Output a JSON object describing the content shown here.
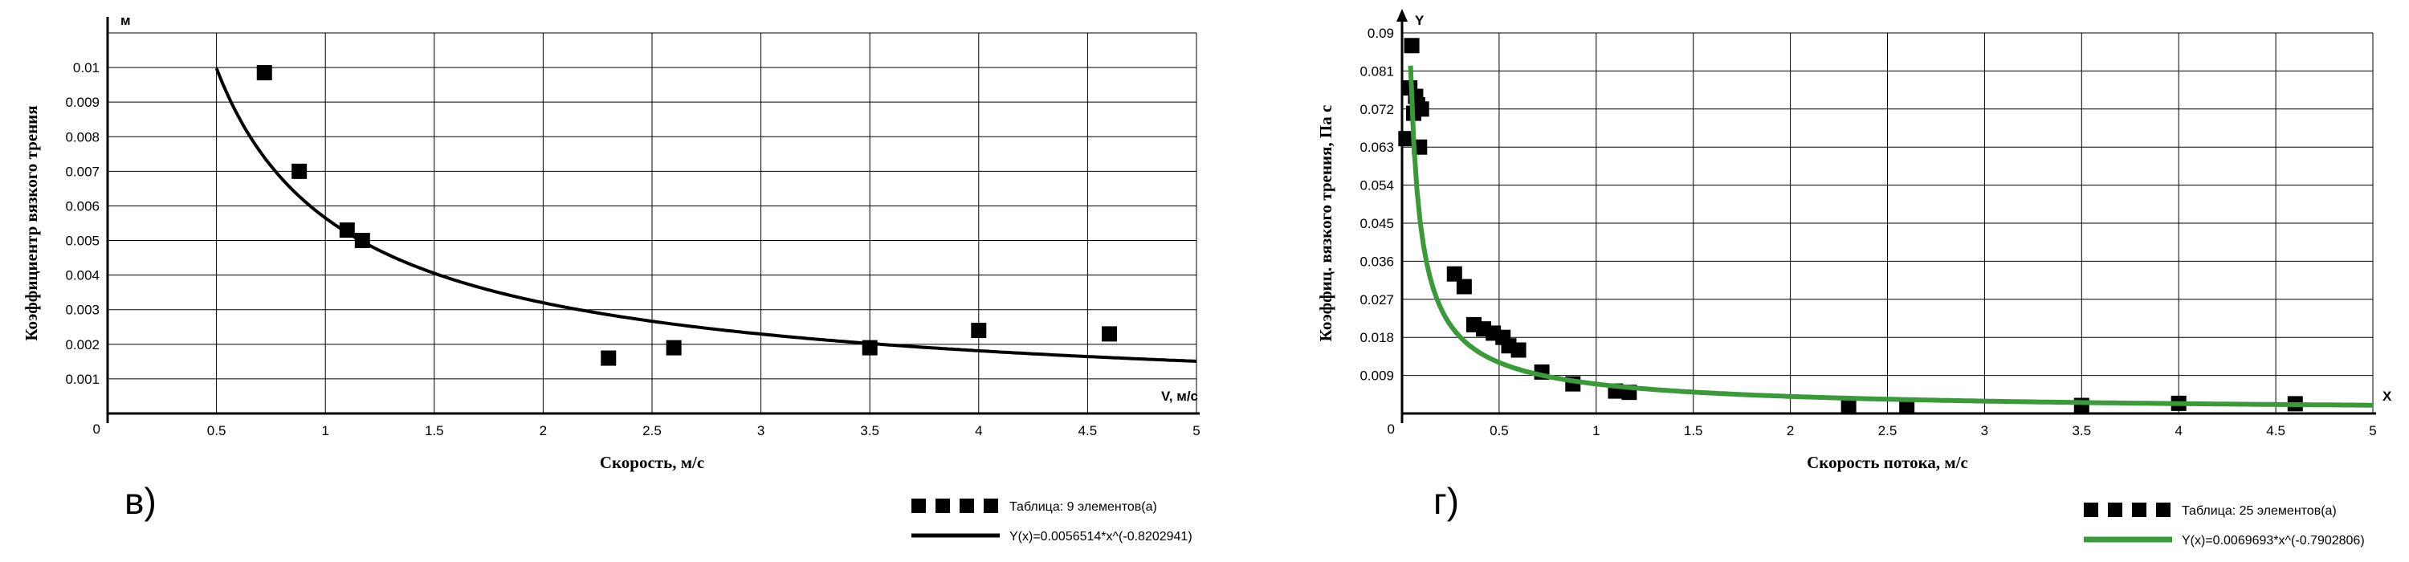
{
  "chart_data": [
    {
      "type": "scatter",
      "panel_label": "в)",
      "ylabel": "Коэффициентр вязкого трения",
      "ylabel_top": "м",
      "xlabel": "Скорость, м/с",
      "xlabel_end": "V, м/с",
      "xlim": [
        0,
        5
      ],
      "ylim": [
        0,
        0.011
      ],
      "x_ticks": [
        "0.5",
        "1",
        "1.5",
        "2",
        "2.5",
        "3",
        "3.5",
        "4",
        "4.5",
        "5"
      ],
      "y_ticks": [
        "0.001",
        "0.002",
        "0.003",
        "0.004",
        "0.005",
        "0.006",
        "0.007",
        "0.008",
        "0.009",
        "0.01"
      ],
      "origin_label": "0",
      "grid": true,
      "legend_position": "bottom-right",
      "series": [
        {
          "name": "Таблица: 9 элементов(а)",
          "kind": "points",
          "color": "#000000",
          "x": [
            0.72,
            0.88,
            1.1,
            1.17,
            2.3,
            2.6,
            3.5,
            4.0,
            4.6
          ],
          "y": [
            0.00985,
            0.007,
            0.0053,
            0.005,
            0.0016,
            0.0019,
            0.0019,
            0.0024,
            0.0023
          ]
        },
        {
          "name": "Y(x)=0.0056514*x^(-0.8202941)",
          "kind": "power_curve",
          "color": "#000000",
          "a": 0.0056514,
          "b": -0.8202941,
          "x_from": 0.5,
          "x_to": 5.0
        }
      ]
    },
    {
      "type": "scatter",
      "panel_label": "г)",
      "ylabel": "Коэффиц. вязкого трения, Па с",
      "ylabel_top": "Y",
      "xlabel": "Скорость потока, м/с",
      "xlabel_end": "X",
      "xlim": [
        0,
        5
      ],
      "ylim": [
        0,
        0.09
      ],
      "x_ticks": [
        "0.5",
        "1",
        "1.5",
        "2",
        "2.5",
        "3",
        "3.5",
        "4",
        "4.5",
        "5"
      ],
      "y_ticks": [
        "0.009",
        "0.018",
        "0.027",
        "0.036",
        "0.045",
        "0.054",
        "0.063",
        "0.072",
        "0.081",
        "0.09"
      ],
      "origin_label": "0",
      "grid": true,
      "legend_position": "bottom-right",
      "series": [
        {
          "name": "Таблица: 25 элементов(а)",
          "kind": "points",
          "color": "#000000",
          "x": [
            0.02,
            0.05,
            0.06,
            0.07,
            0.08,
            0.09,
            0.1,
            0.27,
            0.32,
            0.37,
            0.42,
            0.47,
            0.52,
            0.55,
            0.6,
            0.72,
            0.88,
            1.1,
            1.17,
            2.3,
            2.6,
            3.5,
            4.0,
            4.6,
            0.04
          ],
          "y": [
            0.065,
            0.087,
            0.071,
            0.075,
            0.073,
            0.063,
            0.072,
            0.033,
            0.03,
            0.021,
            0.02,
            0.019,
            0.018,
            0.016,
            0.015,
            0.0098,
            0.007,
            0.0053,
            0.005,
            0.0016,
            0.0019,
            0.0019,
            0.0024,
            0.0023,
            0.077
          ]
        },
        {
          "name": "Y(x)=0.0069693*x^(-0.7902806)",
          "kind": "power_curve",
          "color": "#3a9a3a",
          "a": 0.0069693,
          "b": -0.7902806,
          "x_from": 0.044,
          "x_to": 5.0
        }
      ]
    }
  ]
}
